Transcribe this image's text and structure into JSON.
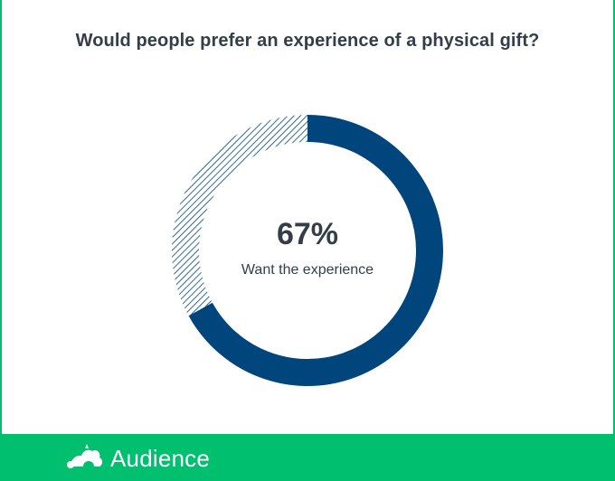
{
  "colors": {
    "primary": "#00457c",
    "accent": "#00bf6f",
    "text": "#333e48"
  },
  "header": {
    "title": "Would people prefer an experience of a physical gift?"
  },
  "chart_data": {
    "type": "pie",
    "title": "Would people prefer an experience of a physical gift?",
    "series": [
      {
        "name": "Want the experience",
        "value": 67,
        "color": "#00457c",
        "style": "solid"
      },
      {
        "value": 33,
        "color": "#00457c",
        "style": "hatched"
      }
    ],
    "center_value": "67%",
    "center_label": "Want the experience"
  },
  "footer": {
    "brand": "Audience",
    "icon": "surveymonkey-logo-icon"
  }
}
